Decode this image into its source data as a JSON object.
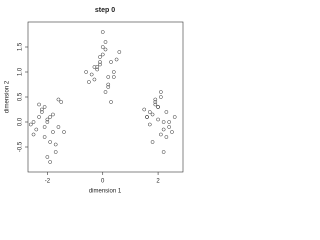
{
  "chart_data": {
    "type": "scatter",
    "title": "step 0",
    "xlabel": "dimension 1",
    "ylabel": "dimension 2",
    "x": [
      -2.3,
      -1.8,
      -2.1,
      -1.6,
      -2.5,
      -1.9,
      -2.2,
      -1.7,
      -2.0,
      -2.4,
      -1.5,
      -2.1,
      -1.8,
      -2.6,
      -1.9,
      -2.2,
      -1.4,
      -2.0,
      -2.3,
      -1.7,
      -2.1,
      -1.9,
      -2.5,
      -1.6,
      -2.0,
      -0.3,
      0.2,
      -0.1,
      0.4,
      0.0,
      -0.5,
      0.3,
      0.1,
      -0.2,
      0.6,
      -0.4,
      0.0,
      0.2,
      -0.1,
      0.5,
      -0.3,
      0.1,
      0.3,
      -0.6,
      0.0,
      0.2,
      -0.2,
      0.4,
      0.1,
      -0.1,
      1.7,
      2.2,
      1.9,
      2.4,
      2.0,
      1.6,
      2.3,
      2.1,
      1.8,
      2.5,
      1.5,
      2.0,
      2.2,
      1.9,
      2.6,
      1.7,
      2.1,
      2.3,
      1.8,
      2.0,
      2.4,
      1.9,
      2.2,
      1.6,
      2.1
    ],
    "values": [
      0.1,
      -0.2,
      0.3,
      -0.1,
      0.0,
      -0.4,
      0.2,
      -0.6,
      0.05,
      -0.15,
      0.4,
      -0.3,
      0.15,
      -0.05,
      -0.8,
      0.25,
      -0.2,
      0.0,
      0.35,
      -0.45,
      -0.1,
      0.1,
      -0.25,
      0.45,
      -0.7,
      1.1,
      0.9,
      1.3,
      1.0,
      1.5,
      0.8,
      1.2,
      0.6,
      1.05,
      1.4,
      0.95,
      1.8,
      0.7,
      1.15,
      1.25,
      0.85,
      1.6,
      0.4,
      1.0,
      1.35,
      0.75,
      1.1,
      0.9,
      1.45,
      1.2,
      0.2,
      0.0,
      0.4,
      -0.1,
      0.3,
      0.1,
      -0.3,
      0.5,
      0.15,
      -0.2,
      0.25,
      0.05,
      -0.6,
      0.35,
      0.1,
      -0.05,
      0.6,
      0.2,
      -0.4,
      0.3,
      0.0,
      0.45,
      -0.15,
      0.1,
      -0.25
    ],
    "color": "#333333",
    "xlim": [
      -2.7,
      2.9
    ],
    "xticks": [
      -2,
      0,
      2
    ],
    "ylim": [
      -1,
      2
    ],
    "yticks": [
      {
        "value": -0.5,
        "label": "-0.5"
      },
      {
        "value": 0,
        "label": "0.0"
      },
      {
        "value": 0.5,
        "label": "0.5"
      },
      {
        "value": 1,
        "label": "1.0"
      },
      {
        "value": 1.5,
        "label": "1.5"
      }
    ]
  }
}
